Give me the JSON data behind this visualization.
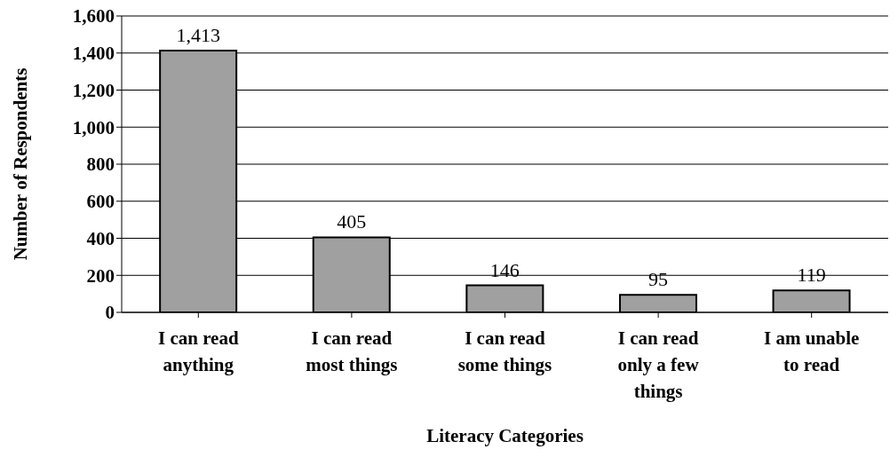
{
  "chart_data": {
    "type": "bar",
    "xlabel": "Literacy Categories",
    "ylabel": "Number of Respondents",
    "categories": [
      "I can read anything",
      "I can read most things",
      "I can read some things",
      "I can read only a few things",
      "I am unable to read"
    ],
    "values": [
      1413,
      405,
      146,
      95,
      119
    ],
    "color": "#a0a0a0",
    "value_labels": [
      "1,413",
      "405",
      "146",
      "95",
      "119"
    ],
    "ylim": [
      0,
      1600
    ],
    "yticks": [
      0,
      200,
      400,
      600,
      800,
      {
        "value": 1000,
        "label": "1,000"
      },
      {
        "value": 1200,
        "label": "1,200"
      },
      {
        "value": 1400,
        "label": "1,400"
      },
      {
        "value": 1600,
        "label": "1,600"
      }
    ],
    "grid": "y",
    "legend": false
  }
}
